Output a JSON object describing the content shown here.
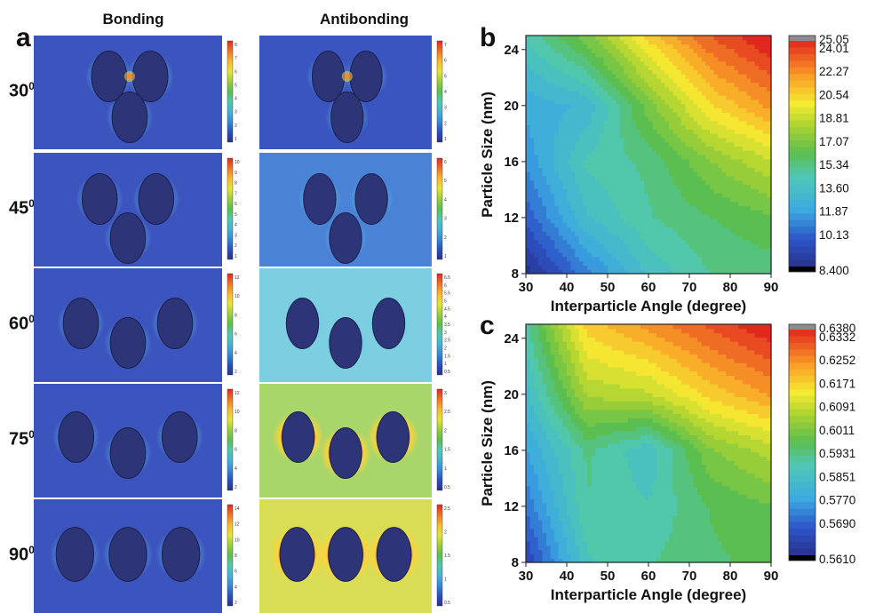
{
  "panel_a": {
    "letter": "a",
    "columns": [
      "Bonding",
      "Antibonding"
    ],
    "rows": [
      {
        "label": "30",
        "sup": "0",
        "bonding_scale": [
          "8",
          "7",
          "6",
          "5",
          "4",
          "3",
          "2",
          "1"
        ],
        "antibonding_scale": [
          "7",
          "6",
          "5",
          "4",
          "3",
          "2",
          "1"
        ]
      },
      {
        "label": "45",
        "sup": "0",
        "bonding_scale": [
          "10",
          "9",
          "8",
          "7",
          "6",
          "5",
          "4",
          "3",
          "2",
          "1"
        ],
        "antibonding_scale": [
          "6",
          "5",
          "4",
          "3",
          "2",
          "1"
        ]
      },
      {
        "label": "60",
        "sup": "0",
        "bonding_scale": [
          "12",
          "10",
          "8",
          "6",
          "4",
          "2"
        ],
        "antibonding_scale": [
          "6.5",
          "6",
          "5.5",
          "5",
          "4.5",
          "4",
          "3.5",
          "3",
          "2.5",
          "2",
          "1.5",
          "1",
          "0.5"
        ]
      },
      {
        "label": "75",
        "sup": "0",
        "bonding_scale": [
          "12",
          "10",
          "8",
          "6",
          "4",
          "2"
        ],
        "antibonding_scale": [
          "3",
          "2.5",
          "2",
          "1.5",
          "1",
          "0.5"
        ]
      },
      {
        "label": "90",
        "sup": "0",
        "bonding_scale": [
          "14",
          "12",
          "10",
          "8",
          "6",
          "4",
          "2"
        ],
        "antibonding_scale": [
          "2.5",
          "2",
          "1.5",
          "1",
          "0.5"
        ]
      }
    ]
  },
  "chart_data": [
    {
      "type": "heatmap",
      "panel": "b",
      "xlabel": "Interparticle Angle (degree)",
      "ylabel": "Particle Size (nm)",
      "xlim": [
        30,
        90
      ],
      "ylim": [
        8,
        25
      ],
      "x_ticks": [
        30,
        40,
        50,
        60,
        70,
        80,
        90
      ],
      "y_ticks": [
        8,
        12,
        16,
        20,
        24
      ],
      "colorbar_labels": [
        "25.05",
        "24.01",
        "22.27",
        "20.54",
        "18.81",
        "17.07",
        "15.34",
        "13.60",
        "11.87",
        "10.13",
        "8.400"
      ],
      "color_range": [
        8.4,
        25.05
      ],
      "x": [
        30,
        45,
        60,
        75,
        90
      ],
      "y": [
        8,
        12,
        16,
        20,
        24
      ],
      "values": [
        [
          8.4,
          11.5,
          14.2,
          15.6,
          15.9
        ],
        [
          10.5,
          14.0,
          15.5,
          16.3,
          17.0
        ],
        [
          12.0,
          15.0,
          15.8,
          17.8,
          19.3
        ],
        [
          12.8,
          13.5,
          17.5,
          20.8,
          22.6
        ],
        [
          14.5,
          16.8,
          20.4,
          23.3,
          25.0
        ]
      ]
    },
    {
      "type": "heatmap",
      "panel": "c",
      "xlabel": "Interparticle Angle (degree)",
      "ylabel": "Particle Size (nm)",
      "xlim": [
        30,
        90
      ],
      "ylim": [
        8,
        25
      ],
      "x_ticks": [
        30,
        40,
        50,
        60,
        70,
        80,
        90
      ],
      "y_ticks": [
        8,
        12,
        16,
        20,
        24
      ],
      "colorbar_labels": [
        "0.6380",
        "0.6332",
        "0.6252",
        "0.6171",
        "0.6091",
        "0.6011",
        "0.5931",
        "0.5851",
        "0.5770",
        "0.5690",
        "0.5610"
      ],
      "color_range": [
        0.561,
        0.638
      ],
      "x": [
        30,
        45,
        60,
        75,
        90
      ],
      "y": [
        8,
        12,
        16,
        20,
        24
      ],
      "values": [
        [
          0.566,
          0.59,
          0.594,
          0.597,
          0.599
        ],
        [
          0.574,
          0.594,
          0.591,
          0.598,
          0.601
        ],
        [
          0.58,
          0.595,
          0.588,
          0.604,
          0.61
        ],
        [
          0.586,
          0.609,
          0.611,
          0.62,
          0.626
        ],
        [
          0.592,
          0.618,
          0.624,
          0.631,
          0.637
        ]
      ]
    }
  ],
  "colors": {
    "field_base": "#3a4fb3",
    "particle": "#2c3275",
    "hotspot": "#ff2010"
  }
}
